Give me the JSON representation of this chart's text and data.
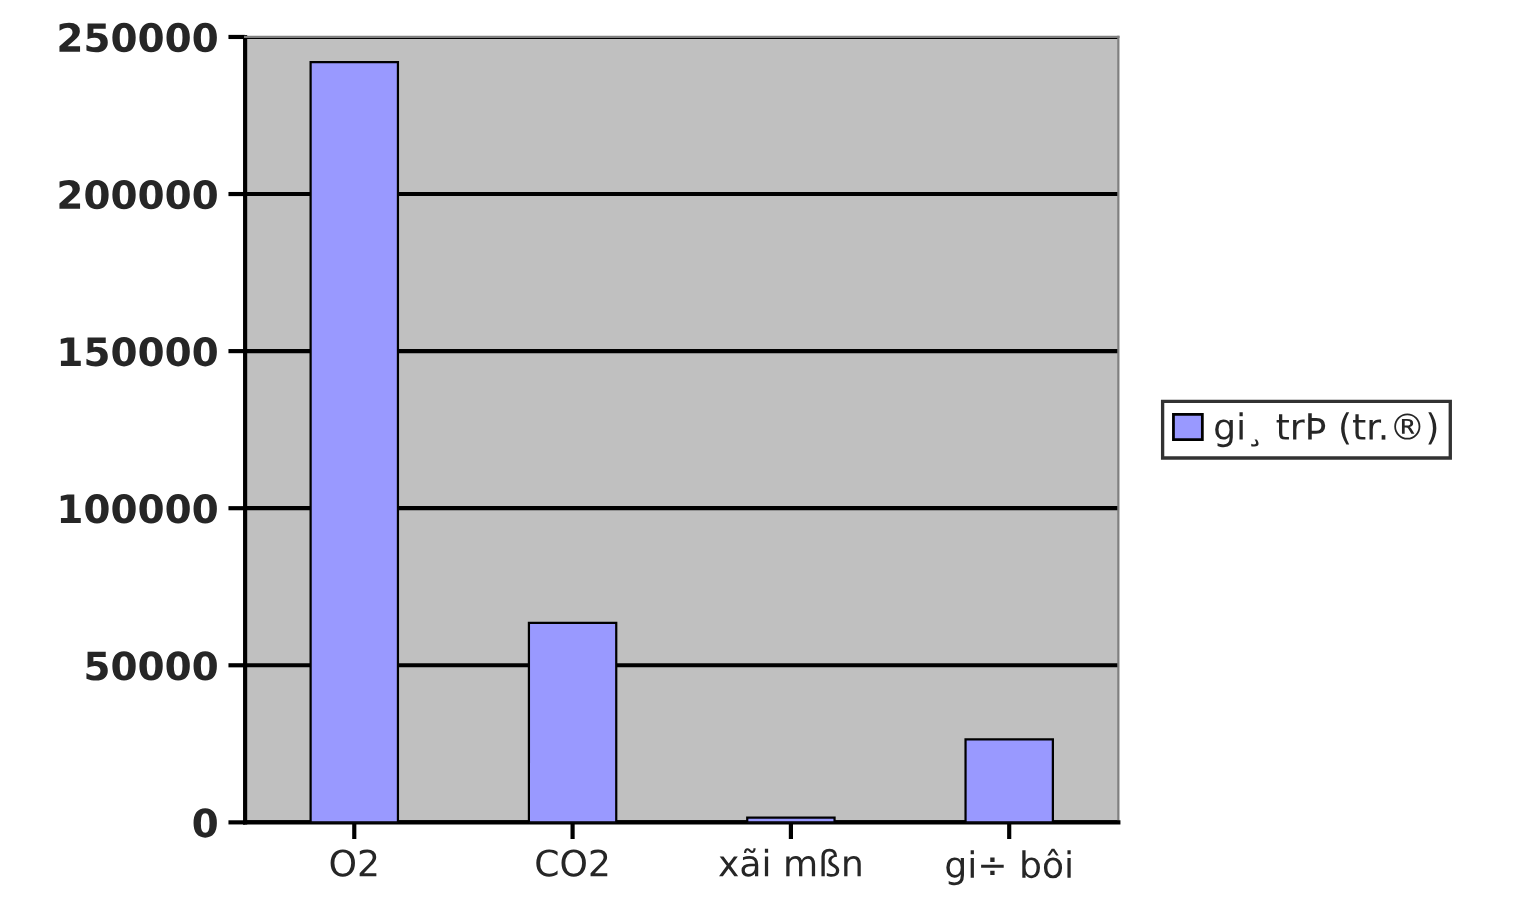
{
  "chart_data": {
    "type": "bar",
    "categories": [
      "O2",
      "CO2",
      "xãi mßn",
      "gi÷ bôi"
    ],
    "series": [
      {
        "name": "gi¸ trÞ (tr.®)",
        "color": "#9999ff",
        "values": [
          242000,
          63500,
          1500,
          26400
        ]
      }
    ],
    "ylim": [
      0,
      250000
    ],
    "yticks": [
      0,
      50000,
      100000,
      150000,
      200000,
      250000
    ],
    "grid": "y",
    "legend": "right"
  }
}
